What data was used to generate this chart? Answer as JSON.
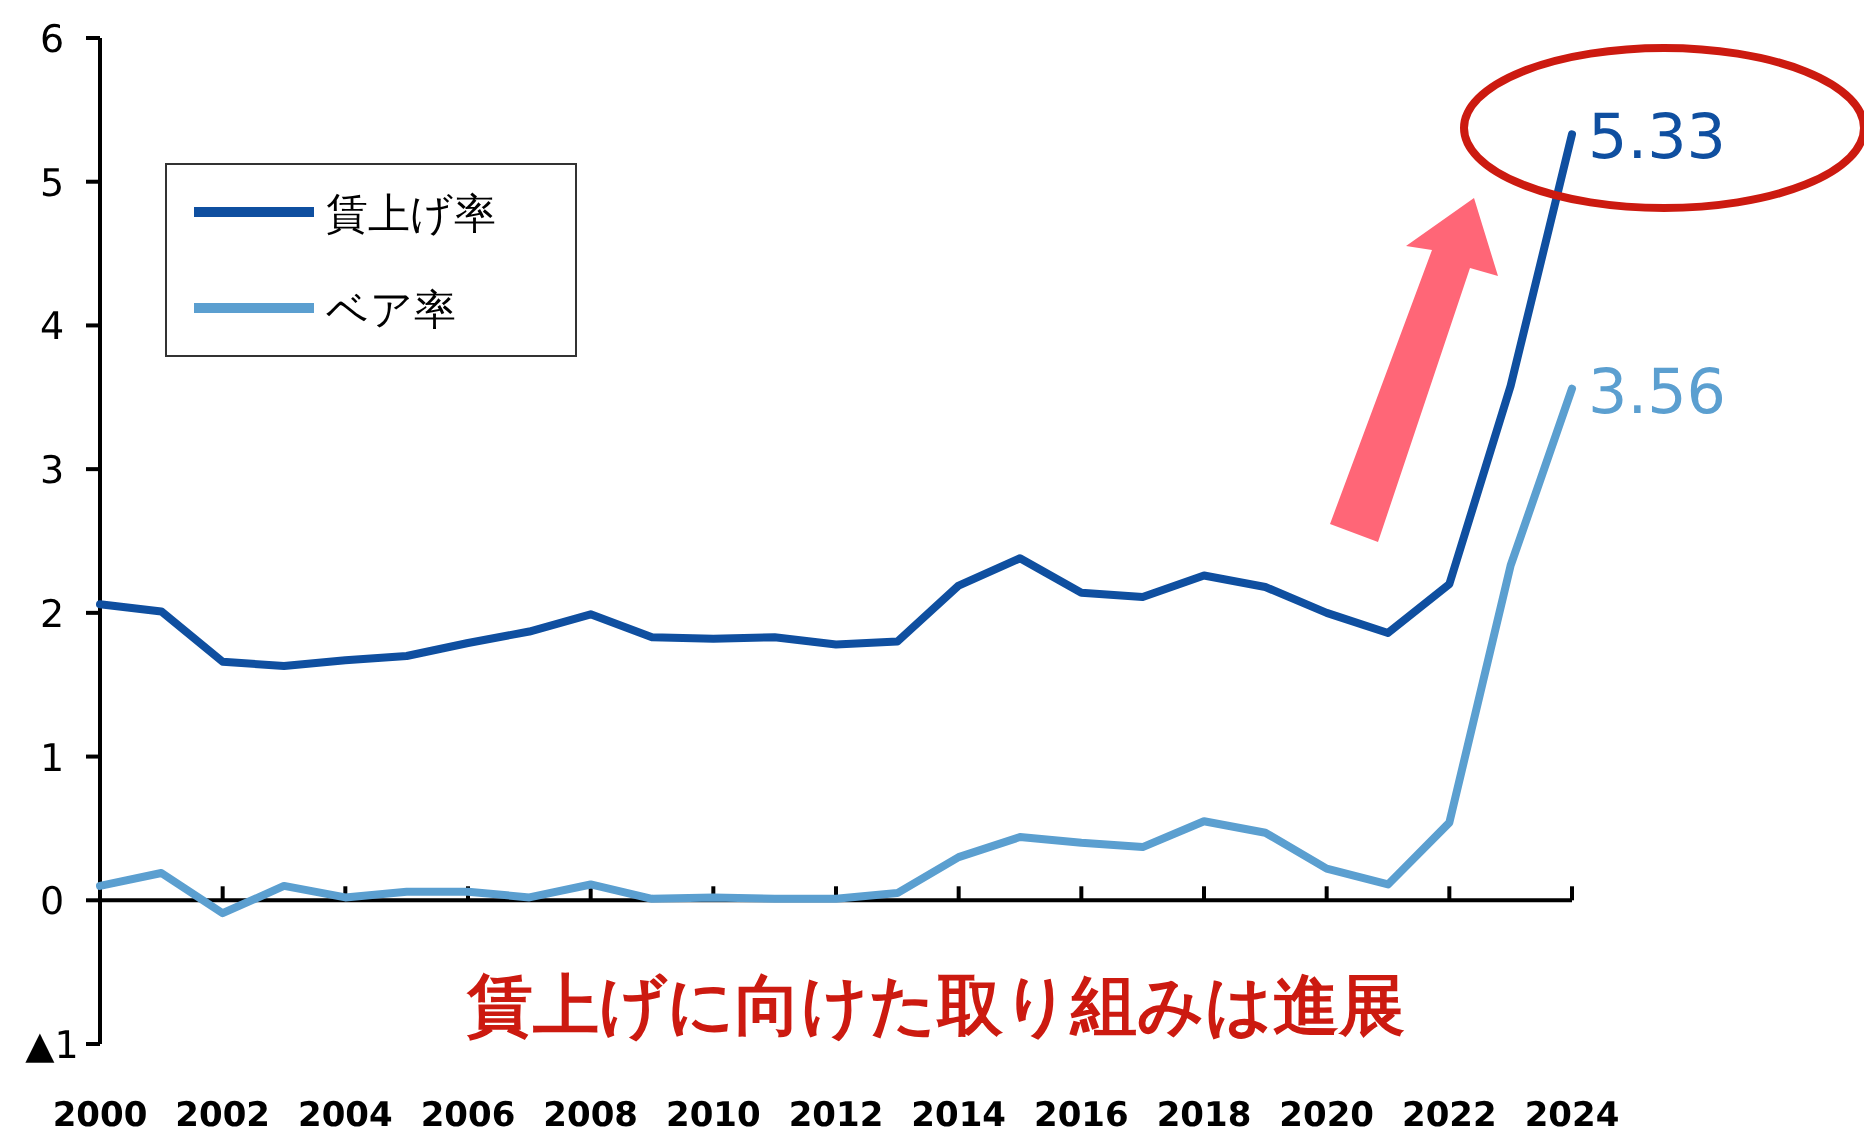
{
  "chart_data": {
    "type": "line",
    "x": [
      2000,
      2001,
      2002,
      2003,
      2004,
      2005,
      2006,
      2007,
      2008,
      2009,
      2010,
      2011,
      2012,
      2013,
      2014,
      2015,
      2016,
      2017,
      2018,
      2019,
      2020,
      2021,
      2022,
      2023,
      2024
    ],
    "series": [
      {
        "name": "賃上げ率",
        "color": "#0f4fa0",
        "values": [
          2.06,
          2.01,
          1.66,
          1.63,
          1.67,
          1.7,
          1.79,
          1.87,
          1.99,
          1.83,
          1.82,
          1.83,
          1.78,
          1.8,
          2.19,
          2.38,
          2.14,
          2.11,
          2.26,
          2.18,
          2.0,
          1.86,
          2.2,
          3.58,
          5.33
        ],
        "value_labels": [
          null,
          null,
          null,
          null,
          null,
          null,
          null,
          null,
          null,
          null,
          null,
          null,
          null,
          null,
          null,
          null,
          null,
          null,
          null,
          null,
          null,
          null,
          null,
          null,
          "5.33"
        ]
      },
      {
        "name": "ベア率",
        "color": "#5b9fd0",
        "values": [
          0.1,
          0.19,
          -0.09,
          0.1,
          0.02,
          0.06,
          0.06,
          0.02,
          0.11,
          0.01,
          0.02,
          0.01,
          0.01,
          0.05,
          0.3,
          0.44,
          0.4,
          0.37,
          0.55,
          0.47,
          0.22,
          0.11,
          0.54,
          2.33,
          3.56
        ],
        "value_labels": [
          null,
          null,
          null,
          null,
          null,
          null,
          null,
          null,
          null,
          null,
          null,
          null,
          null,
          null,
          null,
          null,
          null,
          null,
          null,
          null,
          null,
          null,
          null,
          null,
          "3.56"
        ]
      }
    ],
    "xlim": [
      2000,
      2024
    ],
    "xticks": [
      2000,
      2002,
      2004,
      2006,
      2008,
      2010,
      2012,
      2014,
      2016,
      2018,
      2020,
      2022,
      2024
    ],
    "ylim": [
      -1,
      6
    ],
    "yticks": [
      {
        "value": -1,
        "label": "▲1"
      },
      0,
      1,
      2,
      3,
      4,
      5,
      6
    ],
    "legend": "top left",
    "annotations": [
      "賃上げに向けた取り組みは進展"
    ]
  }
}
